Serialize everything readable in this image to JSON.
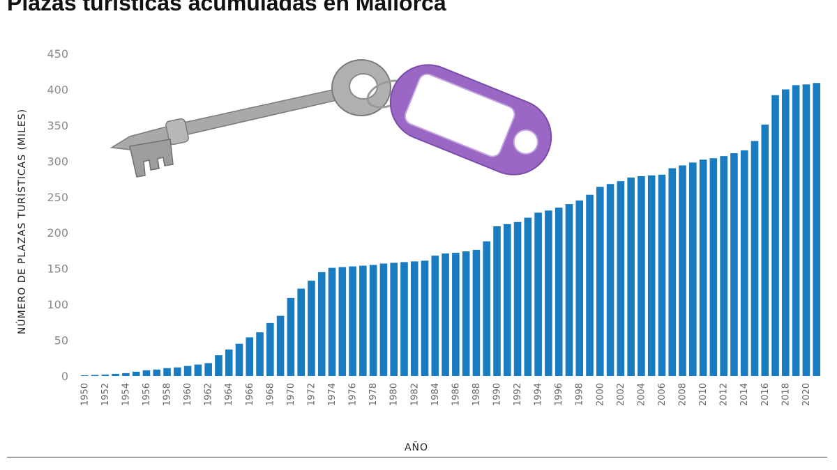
{
  "title": "Plazas turísticas acumuladas en Mallorca",
  "colors": {
    "bar": "#1a7cc0",
    "tag": "#9a68c4",
    "key": "#a7a7a7"
  },
  "illustration": {
    "icon": "key-with-tag-icon"
  },
  "chart_data": {
    "type": "bar",
    "xlabel": "AÑO",
    "ylabel": "NÚMERO DE PLAZAS TURÍSTICAS (MILES)",
    "ylim": [
      0,
      450
    ],
    "yticks": [
      0,
      50,
      100,
      150,
      200,
      250,
      300,
      350,
      400,
      450
    ],
    "grid": false,
    "categories": [
      "1950",
      "1951",
      "1952",
      "1953",
      "1954",
      "1955",
      "1956",
      "1957",
      "1958",
      "1959",
      "1960",
      "1961",
      "1962",
      "1963",
      "1964",
      "1965",
      "1966",
      "1967",
      "1968",
      "1969",
      "1970",
      "1971",
      "1972",
      "1973",
      "1974",
      "1975",
      "1976",
      "1977",
      "1978",
      "1979",
      "1980",
      "1981",
      "1982",
      "1983",
      "1984",
      "1985",
      "1986",
      "1987",
      "1988",
      "1989",
      "1990",
      "1991",
      "1992",
      "1993",
      "1994",
      "1995",
      "1996",
      "1997",
      "1998",
      "1999",
      "2000",
      "2001",
      "2002",
      "2003",
      "2004",
      "2005",
      "2006",
      "2007",
      "2008",
      "2009",
      "2010",
      "2011",
      "2012",
      "2013",
      "2014",
      "2015",
      "2016",
      "2017",
      "2018",
      "2019",
      "2020",
      "2021"
    ],
    "tick_labels": [
      "1950",
      "1952",
      "1954",
      "1956",
      "1958",
      "1960",
      "1962",
      "1964",
      "1966",
      "1968",
      "1970",
      "1972",
      "1974",
      "1976",
      "1978",
      "1980",
      "1982",
      "1984",
      "1986",
      "1988",
      "1990",
      "1992",
      "1994",
      "1996",
      "1998",
      "2000",
      "2002",
      "2004",
      "2006",
      "2008",
      "2010",
      "2012",
      "2014",
      "2016",
      "2018",
      "2020"
    ],
    "values": [
      1,
      1.5,
      2,
      3,
      4,
      6,
      8,
      9,
      11,
      12,
      14,
      16,
      18,
      29,
      37,
      45,
      54,
      61,
      74,
      84,
      109,
      122,
      133,
      145,
      151,
      152,
      153,
      154,
      155,
      157,
      158,
      159,
      160,
      161,
      168,
      171,
      172,
      174,
      176,
      188,
      209,
      212,
      215,
      221,
      228,
      231,
      235,
      240,
      245,
      253,
      264,
      268,
      272,
      277,
      279,
      280,
      281,
      290,
      294,
      298,
      302,
      304,
      307,
      311,
      315,
      328,
      351,
      392,
      400,
      406,
      407,
      409
    ]
  }
}
